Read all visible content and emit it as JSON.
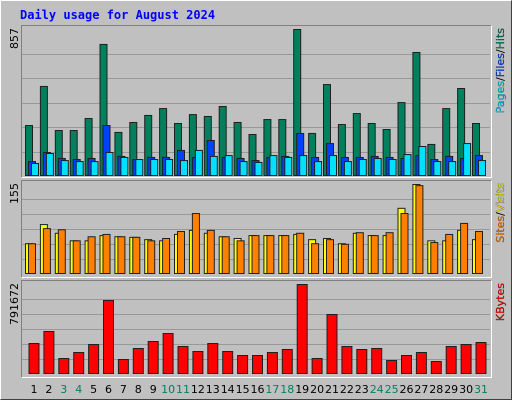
{
  "chart_data": [
    {
      "type": "bar",
      "title": "Daily usage for August 2024",
      "separator": "/",
      "ylim": [
        0,
        857
      ],
      "yticks": [
        857
      ],
      "series": [
        {
          "name": "Hits",
          "color": "#00805c",
          "values": [
            297,
            525,
            268,
            268,
            338,
            770,
            257,
            315,
            356,
            396,
            309,
            361,
            350,
            408,
            315,
            245,
            332,
            332,
            857,
            251,
            536,
            303,
            367,
            309,
            274,
            431,
            723,
            187,
            396,
            513,
            309
          ]
        },
        {
          "name": "Files",
          "color": "#0040ff",
          "values": [
            87,
            140,
            105,
            99,
            105,
            297,
            117,
            99,
            111,
            111,
            152,
            111,
            210,
            111,
            105,
            93,
            111,
            117,
            251,
            111,
            192,
            111,
            111,
            117,
            111,
            105,
            122,
            99,
            117,
            105,
            122
          ]
        },
        {
          "name": "Pages",
          "color": "#00e0ff",
          "values": [
            76,
            134,
            93,
            87,
            87,
            140,
            111,
            99,
            99,
            99,
            93,
            152,
            117,
            122,
            87,
            82,
            122,
            111,
            122,
            87,
            122,
            87,
            99,
            105,
            99,
            128,
            175,
            87,
            87,
            192,
            93
          ]
        }
      ]
    },
    {
      "type": "bar",
      "separator": "/",
      "ylim": [
        0,
        155
      ],
      "yticks": [
        155
      ],
      "series": [
        {
          "name": "Visits",
          "color": "#ffff00",
          "values": [
            53,
            86,
            71,
            58,
            58,
            67,
            65,
            64,
            60,
            58,
            69,
            76,
            71,
            65,
            62,
            67,
            67,
            67,
            69,
            60,
            62,
            53,
            71,
            67,
            67,
            114,
            155,
            58,
            58,
            76,
            60
          ]
        },
        {
          "name": "Sites",
          "color": "#ff8000",
          "values": [
            53,
            79,
            77,
            58,
            65,
            69,
            65,
            64,
            58,
            62,
            74,
            105,
            76,
            65,
            58,
            67,
            67,
            67,
            71,
            53,
            60,
            52,
            72,
            67,
            72,
            105,
            153,
            55,
            69,
            88,
            74
          ]
        }
      ]
    },
    {
      "type": "bar",
      "ylim": [
        0,
        791672
      ],
      "yticks": [
        791672
      ],
      "categories": [
        "1",
        "2",
        "3",
        "4",
        "5",
        "6",
        "7",
        "8",
        "9",
        "10",
        "11",
        "12",
        "13",
        "14",
        "15",
        "16",
        "17",
        "18",
        "19",
        "20",
        "21",
        "22",
        "23",
        "24",
        "25",
        "26",
        "27",
        "28",
        "29",
        "30",
        "31"
      ],
      "highlight_color": "#00805c",
      "highlighted": [
        2,
        3,
        9,
        10,
        16,
        17,
        23,
        24,
        30
      ],
      "series": [
        {
          "name": "KBytes",
          "color": "#ff0000",
          "values": [
            272676,
            378228,
            140736,
            193512,
            263880,
            650904,
            131940,
            228696,
            290268,
            360636,
            246288,
            202308,
            272676,
            202308,
            167124,
            167124,
            193512,
            219900,
            791672,
            140736,
            527760,
            246288,
            219900,
            228696,
            123144,
            167124,
            193512,
            114348,
            246288,
            263880,
            281472
          ]
        }
      ]
    }
  ]
}
